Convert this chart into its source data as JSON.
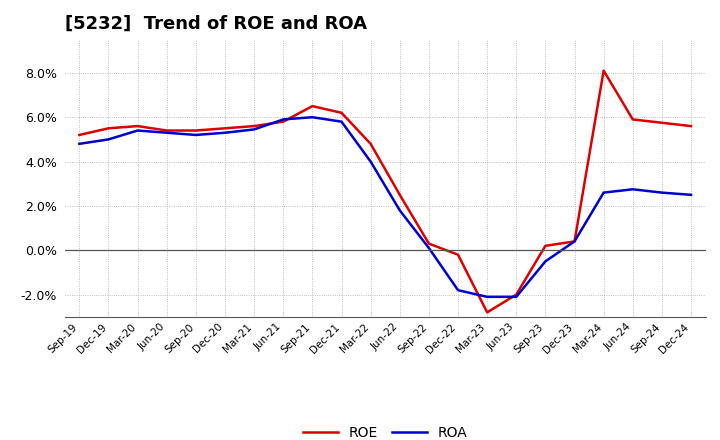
{
  "title": "[5232]  Trend of ROE and ROA",
  "x_labels": [
    "Sep-19",
    "Dec-19",
    "Mar-20",
    "Jun-20",
    "Sep-20",
    "Dec-20",
    "Mar-21",
    "Jun-21",
    "Sep-21",
    "Dec-21",
    "Mar-22",
    "Jun-22",
    "Sep-22",
    "Dec-22",
    "Mar-23",
    "Jun-23",
    "Sep-23",
    "Dec-23",
    "Mar-24",
    "Jun-24",
    "Sep-24",
    "Dec-24"
  ],
  "roe": [
    5.2,
    5.5,
    5.6,
    5.4,
    5.4,
    5.5,
    5.6,
    5.8,
    6.5,
    6.2,
    4.8,
    2.5,
    0.3,
    -0.2,
    -2.8,
    -2.0,
    0.2,
    0.4,
    8.1,
    5.9,
    5.75,
    5.6
  ],
  "roa": [
    4.8,
    5.0,
    5.4,
    5.3,
    5.2,
    5.3,
    5.45,
    5.9,
    6.0,
    5.8,
    4.0,
    1.8,
    0.1,
    -1.8,
    -2.1,
    -2.1,
    -0.5,
    0.4,
    2.6,
    2.75,
    2.6,
    2.5
  ],
  "roe_color": "#dd0000",
  "roa_color": "#0000cc",
  "ylim": [
    -3.0,
    9.5
  ],
  "yticks": [
    -2.0,
    0.0,
    2.0,
    4.0,
    6.0,
    8.0
  ],
  "background_color": "#ffffff",
  "grid_color": "#aaaaaa",
  "title_fontsize": 13,
  "line_width": 1.8
}
